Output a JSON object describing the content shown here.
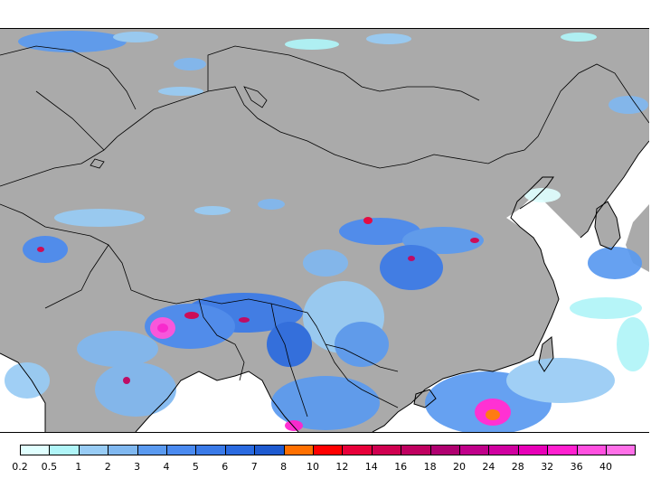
{
  "map": {
    "land_color": "#aaaaaa",
    "sea_color": "#ffffff",
    "border_color": "#000000"
  },
  "colorbar": {
    "colors": [
      "#e0ffff",
      "#b0f5f8",
      "#98ccf5",
      "#80b8f0",
      "#5a9af0",
      "#4a8af0",
      "#3a7ae8",
      "#2a6ae0",
      "#1e5ad0",
      "#ff7000",
      "#ff0000",
      "#e8003a",
      "#d00050",
      "#c00060",
      "#b00070",
      "#c0008a",
      "#d000a0",
      "#e800b8",
      "#ff20d0",
      "#ff50e0",
      "#ff70e8"
    ],
    "ticks": [
      "0.2",
      "0.5",
      "1",
      "2",
      "3",
      "4",
      "5",
      "6",
      "7",
      "8",
      "10",
      "12",
      "14",
      "16",
      "18",
      "20",
      "24",
      "28",
      "32",
      "36",
      "40"
    ]
  }
}
